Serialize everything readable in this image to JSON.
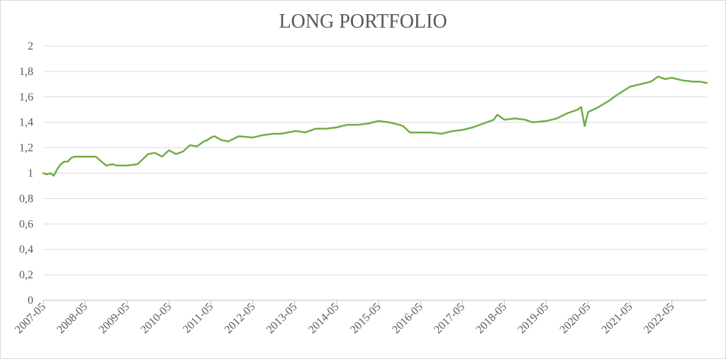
{
  "chart_data": {
    "type": "line",
    "title": "LONG PORTFOLIO",
    "xlabel": "",
    "ylabel": "",
    "ylim": [
      0,
      2
    ],
    "y_ticks": [
      "0",
      "0,2",
      "0,4",
      "0,6",
      "0,8",
      "1",
      "1,2",
      "1,4",
      "1,6",
      "1,8",
      "2"
    ],
    "x_ticks": [
      "2007-05",
      "2008-05",
      "2009-05",
      "2010-05",
      "2011-05",
      "2012-05",
      "2013-05",
      "2014-05",
      "2015-05",
      "2016-05",
      "2017-05",
      "2018-05",
      "2019-05",
      "2020-05",
      "2021-05",
      "2022-05"
    ],
    "grid": true,
    "legend": "none",
    "colors": {
      "series": "#70ad47"
    },
    "series": [
      {
        "x": [
          "2007-05",
          "2007-06",
          "2007-07",
          "2007-08",
          "2007-09",
          "2007-10",
          "2007-11",
          "2007-12",
          "2008-01",
          "2008-02",
          "2008-05",
          "2008-08",
          "2008-11",
          "2009-01",
          "2009-02",
          "2009-05",
          "2009-08",
          "2009-11",
          "2010-01",
          "2010-03",
          "2010-05",
          "2010-07",
          "2010-09",
          "2010-11",
          "2011-01",
          "2011-03",
          "2011-04",
          "2011-05",
          "2011-06",
          "2011-08",
          "2011-10",
          "2012-01",
          "2012-05",
          "2012-08",
          "2012-11",
          "2013-01",
          "2013-05",
          "2013-06",
          "2013-08",
          "2013-11",
          "2014-02",
          "2014-05",
          "2014-08",
          "2014-11",
          "2015-02",
          "2015-05",
          "2015-08",
          "2015-11",
          "2015-12",
          "2016-02",
          "2016-05",
          "2016-08",
          "2016-11",
          "2017-02",
          "2017-05",
          "2017-08",
          "2017-11",
          "2018-02",
          "2018-03",
          "2018-05",
          "2018-08",
          "2018-11",
          "2019-01",
          "2019-05",
          "2019-08",
          "2019-11",
          "2020-02",
          "2020-03",
          "2020-04",
          "2020-05",
          "2020-08",
          "2020-11",
          "2021-01",
          "2021-05",
          "2021-08",
          "2021-11",
          "2022-01",
          "2022-03",
          "2022-05",
          "2022-08",
          "2022-11",
          "2023-01",
          "2023-03"
        ],
        "y": [
          1.0,
          0.99,
          1.0,
          0.98,
          1.03,
          1.07,
          1.09,
          1.09,
          1.12,
          1.13,
          1.13,
          1.13,
          1.06,
          1.07,
          1.06,
          1.06,
          1.07,
          1.15,
          1.16,
          1.13,
          1.18,
          1.15,
          1.17,
          1.22,
          1.21,
          1.25,
          1.26,
          1.28,
          1.29,
          1.26,
          1.25,
          1.29,
          1.28,
          1.3,
          1.31,
          1.31,
          1.33,
          1.33,
          1.32,
          1.35,
          1.35,
          1.36,
          1.38,
          1.38,
          1.39,
          1.41,
          1.4,
          1.38,
          1.37,
          1.32,
          1.32,
          1.32,
          1.31,
          1.33,
          1.34,
          1.36,
          1.39,
          1.42,
          1.46,
          1.42,
          1.43,
          1.42,
          1.4,
          1.41,
          1.43,
          1.47,
          1.5,
          1.52,
          1.37,
          1.48,
          1.52,
          1.57,
          1.61,
          1.68,
          1.7,
          1.72,
          1.76,
          1.74,
          1.75,
          1.73,
          1.72,
          1.72,
          1.71
        ]
      }
    ]
  }
}
